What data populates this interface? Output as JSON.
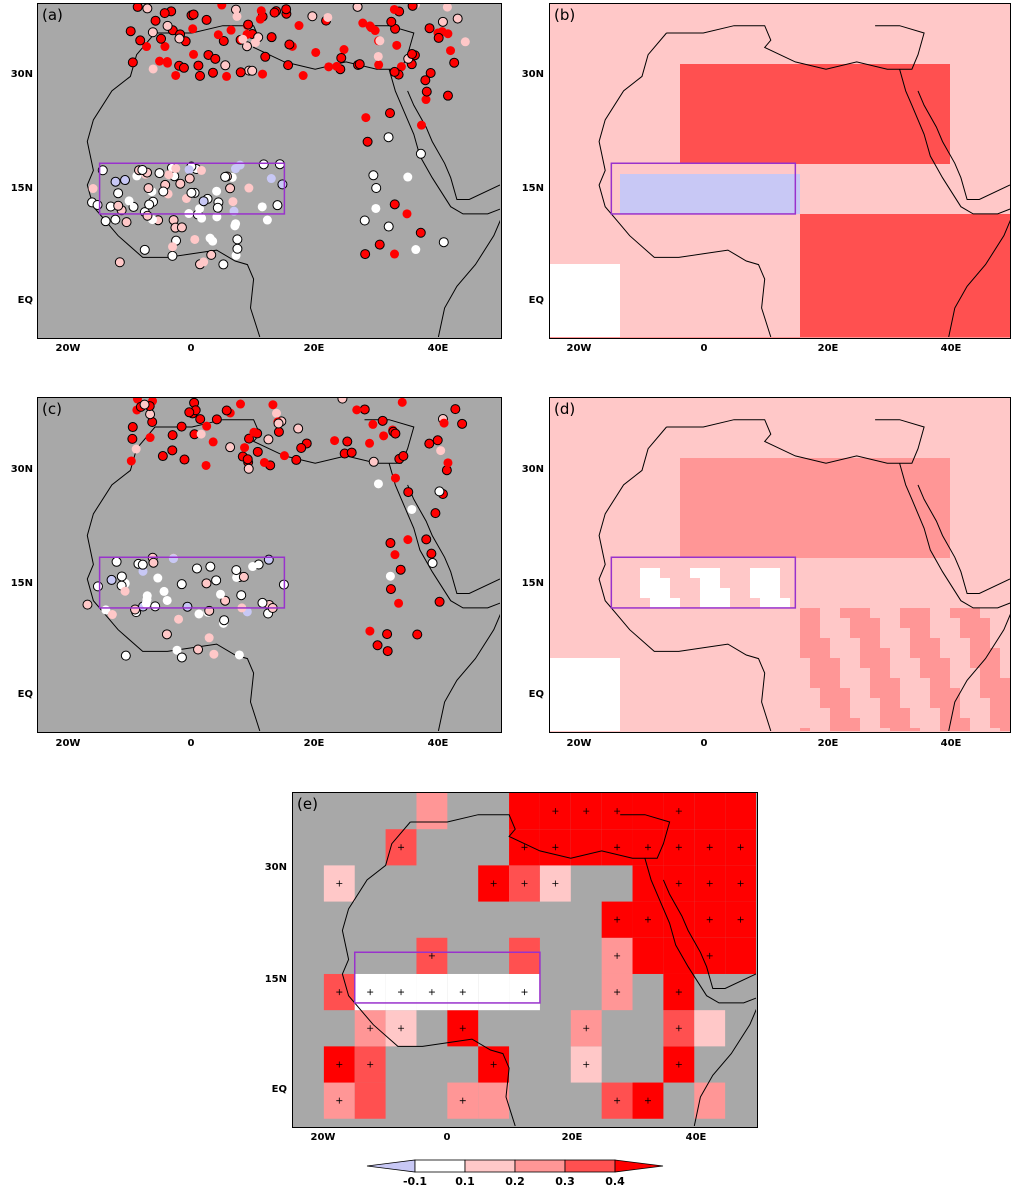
{
  "panels": [
    {
      "id": "a",
      "label": "(a)",
      "type": "stations"
    },
    {
      "id": "b",
      "label": "(b)",
      "type": "field"
    },
    {
      "id": "c",
      "label": "(c)",
      "type": "stations"
    },
    {
      "id": "d",
      "label": "(d)",
      "type": "field"
    },
    {
      "id": "e",
      "label": "(e)",
      "type": "grid"
    }
  ],
  "axes": {
    "lat_labels": [
      "30N",
      "15N",
      "EQ"
    ],
    "lon_labels": [
      "20W",
      "0",
      "20E",
      "40E"
    ]
  },
  "colorbar": {
    "tick_labels": [
      "-0.1",
      "0.1",
      "0.2",
      "0.3",
      "0.4"
    ],
    "colors": [
      "#c8c8f5",
      "#ffffff",
      "#ffc8c8",
      "#ff9696",
      "#ff5050",
      "#ff0000"
    ]
  },
  "colors": {
    "background_gray": "#a8a8a8",
    "box_purple": "#9932cc",
    "contour_blue": "#2020e0",
    "coast": "#000000"
  }
}
